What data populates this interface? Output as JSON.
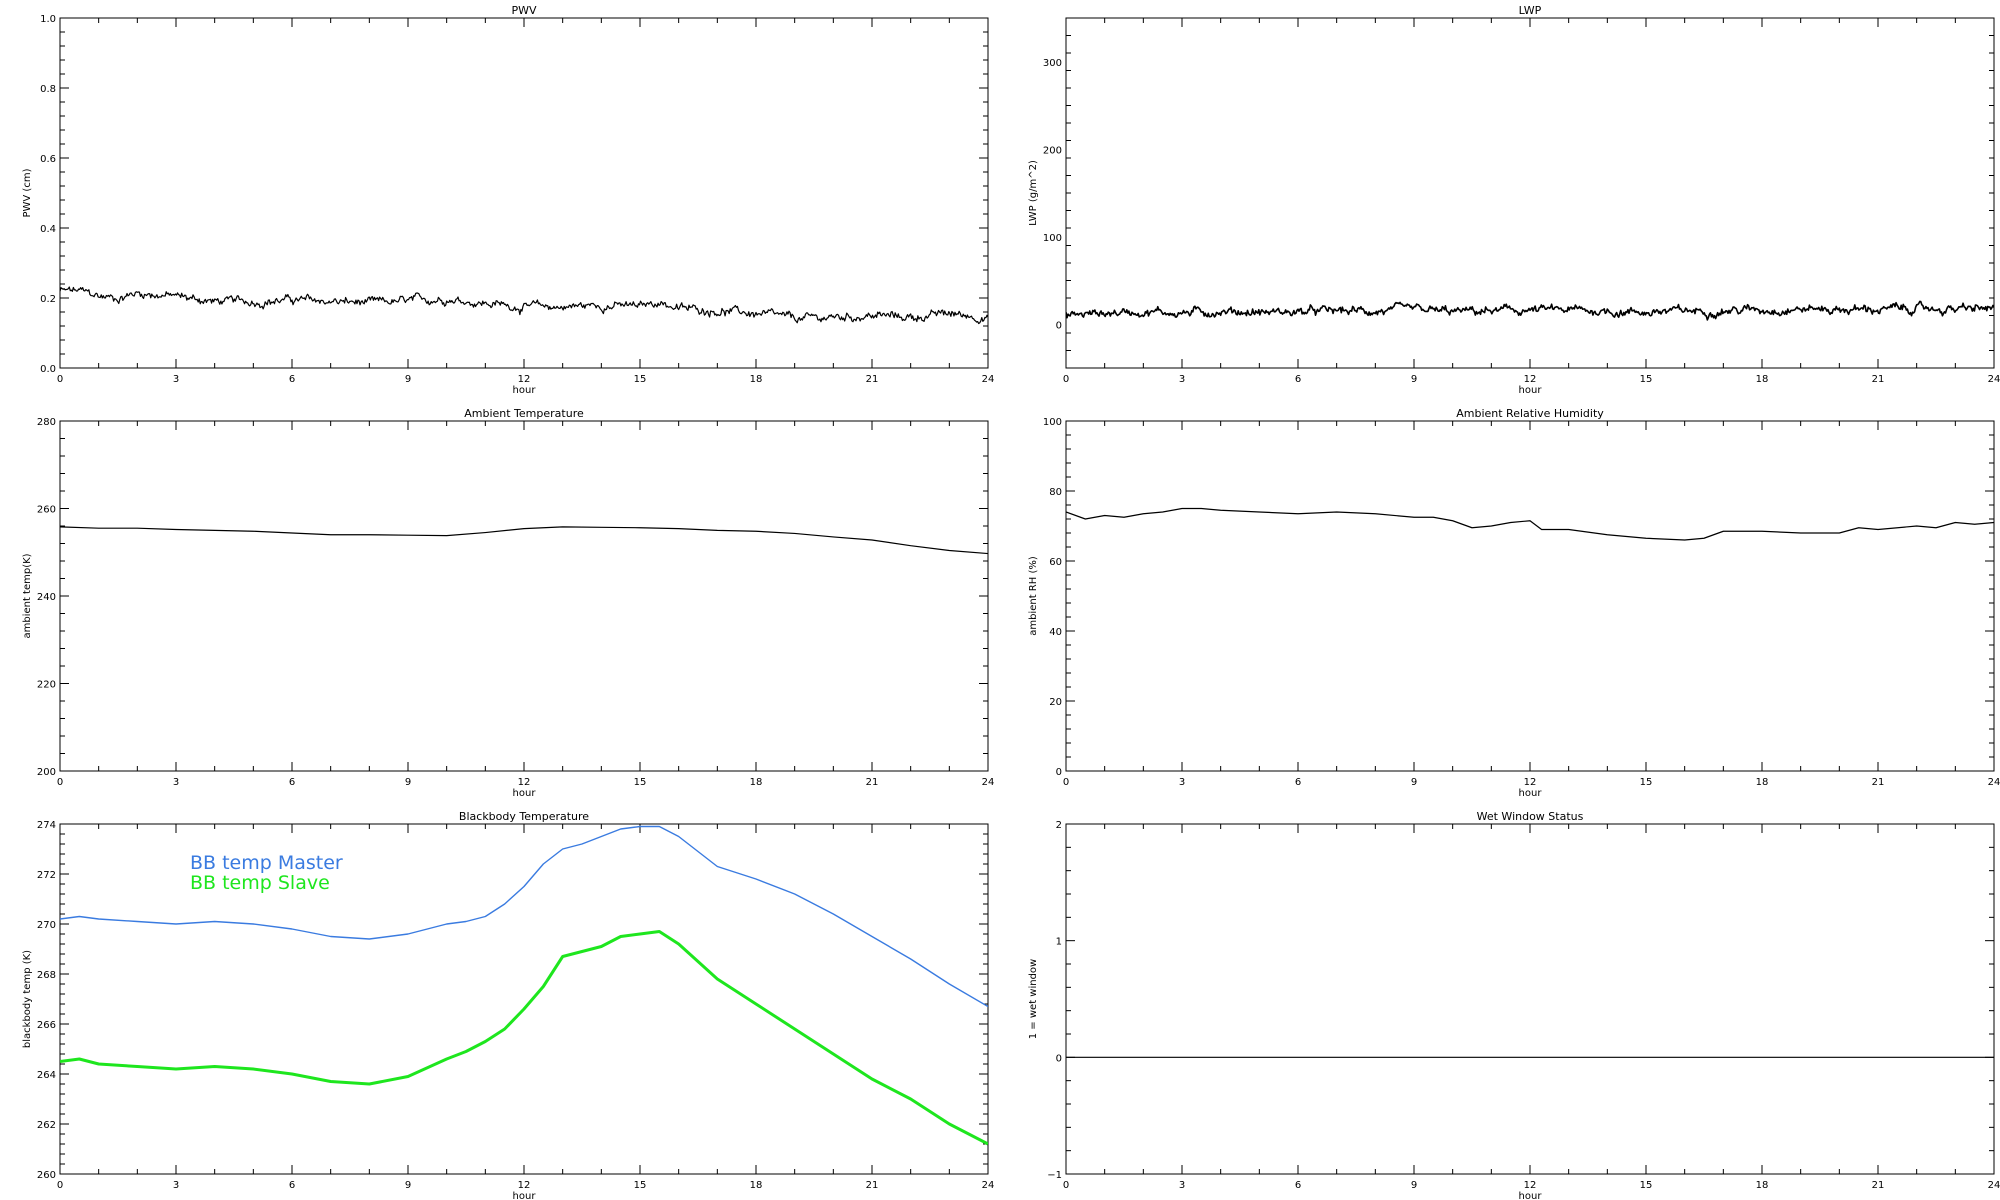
{
  "colors": {
    "background": "#ffffff",
    "axes": "#000000",
    "master": "#3a7be0",
    "slave": "#1ee61e"
  },
  "chart_data": [
    {
      "id": "pwv",
      "type": "line",
      "title": "PWV",
      "xlabel": "hour",
      "ylabel": "PWV (cm)",
      "xlim": [
        0,
        24
      ],
      "ylim": [
        0,
        1
      ],
      "xticks": [
        0,
        3,
        6,
        9,
        12,
        15,
        18,
        21,
        24
      ],
      "yticks": [
        0,
        0.2,
        0.4,
        0.6,
        0.8,
        1
      ],
      "ytick_labels": [
        "0.0",
        "0.2",
        "0.4",
        "0.6",
        "0.8",
        "1.0"
      ],
      "series": [
        {
          "color": "#000000",
          "noisy": true,
          "x": [
            0,
            0.5,
            1,
            1.5,
            2,
            3,
            4,
            5,
            6,
            7,
            8,
            9,
            10,
            11,
            12,
            13,
            14,
            15,
            15.5,
            16,
            17,
            18,
            19,
            20,
            21,
            22,
            23,
            24
          ],
          "y": [
            0.22,
            0.22,
            0.205,
            0.2,
            0.215,
            0.205,
            0.19,
            0.19,
            0.195,
            0.19,
            0.185,
            0.19,
            0.2,
            0.185,
            0.175,
            0.175,
            0.18,
            0.175,
            0.19,
            0.17,
            0.165,
            0.155,
            0.14,
            0.145,
            0.15,
            0.145,
            0.155,
            0.145
          ]
        }
      ]
    },
    {
      "id": "lwp",
      "type": "line",
      "title": "LWP",
      "xlabel": "hour",
      "ylabel": "LWP (g/m^2)",
      "xlim": [
        0,
        24
      ],
      "ylim": [
        -50,
        350
      ],
      "xticks": [
        0,
        3,
        6,
        9,
        12,
        15,
        18,
        21,
        24
      ],
      "yticks": [
        0,
        100,
        200,
        300
      ],
      "ytick_labels": [
        "0",
        "100",
        "200",
        "300"
      ],
      "series": [
        {
          "color": "#000000",
          "noisy": true,
          "x": [
            0,
            1,
            2,
            3,
            4,
            5,
            6,
            7,
            8,
            9,
            10,
            11,
            12,
            13,
            14,
            15,
            16,
            17,
            18,
            19,
            20,
            21,
            22,
            23,
            24
          ],
          "y": [
            10,
            13,
            15,
            13,
            15,
            14,
            14,
            15,
            15,
            16,
            14,
            15,
            16,
            16,
            15,
            14,
            15,
            16,
            17,
            18,
            17,
            17,
            18,
            17,
            18
          ]
        }
      ]
    },
    {
      "id": "ambient-temp",
      "type": "line",
      "title": "Ambient Temperature",
      "xlabel": "hour",
      "ylabel": "ambient temp(K)",
      "xlim": [
        0,
        24
      ],
      "ylim": [
        200,
        280
      ],
      "xticks": [
        0,
        3,
        6,
        9,
        12,
        15,
        18,
        21,
        24
      ],
      "yticks": [
        200,
        220,
        240,
        260,
        280
      ],
      "ytick_labels": [
        "200",
        "220",
        "240",
        "260",
        "280"
      ],
      "series": [
        {
          "color": "#000000",
          "noisy": false,
          "x": [
            0,
            1,
            2,
            3,
            4,
            5,
            6,
            7,
            8,
            9,
            10,
            11,
            12,
            13,
            14,
            15,
            16,
            17,
            18,
            19,
            20,
            21,
            22,
            23,
            24
          ],
          "y": [
            255.8,
            255.5,
            255.5,
            255.2,
            255.0,
            254.8,
            254.4,
            254.0,
            254.0,
            253.9,
            253.8,
            254.5,
            255.4,
            255.8,
            255.7,
            255.6,
            255.4,
            255.0,
            254.8,
            254.3,
            253.5,
            252.8,
            251.5,
            250.4,
            249.7
          ]
        }
      ]
    },
    {
      "id": "ambient-rh",
      "type": "line",
      "title": "Ambient Relative Humidity",
      "xlabel": "hour",
      "ylabel": "ambient RH (%)",
      "xlim": [
        0,
        24
      ],
      "ylim": [
        0,
        100
      ],
      "xticks": [
        0,
        3,
        6,
        9,
        12,
        15,
        18,
        21,
        24
      ],
      "yticks": [
        0,
        20,
        40,
        60,
        80,
        100
      ],
      "ytick_labels": [
        "0",
        "20",
        "40",
        "60",
        "80",
        "100"
      ],
      "series": [
        {
          "color": "#000000",
          "noisy": false,
          "x": [
            0,
            0.5,
            1,
            1.5,
            2,
            2.5,
            3,
            3.5,
            4,
            5,
            6,
            7,
            8,
            9,
            9.5,
            10,
            10.5,
            11,
            11.5,
            12,
            12.3,
            13,
            14,
            15,
            16,
            16.5,
            17,
            18,
            19,
            20,
            20.5,
            21,
            22,
            22.5,
            23,
            23.5,
            24
          ],
          "y": [
            74,
            72,
            73,
            72.5,
            73.5,
            74,
            75,
            75,
            74.5,
            74,
            73.5,
            74,
            73.5,
            72.5,
            72.5,
            71.5,
            69.5,
            70,
            71,
            71.5,
            69,
            69,
            67.5,
            66.5,
            66,
            66.5,
            68.5,
            68.5,
            68,
            68,
            69.5,
            69,
            70,
            69.5,
            71,
            70.5,
            71
          ]
        }
      ]
    },
    {
      "id": "blackbody-temp",
      "type": "line",
      "title": "Blackbody Temperature",
      "xlabel": "hour",
      "ylabel": "blackbody temp (K)",
      "xlim": [
        0,
        24
      ],
      "ylim": [
        260,
        274
      ],
      "xticks": [
        0,
        3,
        6,
        9,
        12,
        15,
        18,
        21,
        24
      ],
      "yticks": [
        260,
        262,
        264,
        266,
        268,
        270,
        272,
        274
      ],
      "ytick_labels": [
        "260",
        "262",
        "264",
        "266",
        "268",
        "270",
        "272",
        "274"
      ],
      "legend": [
        "BB temp Master",
        "BB temp Slave"
      ],
      "series": [
        {
          "name": "BB temp Master",
          "color": "#3a7be0",
          "noisy": false,
          "x": [
            0,
            0.5,
            1,
            2,
            3,
            4,
            5,
            6,
            7,
            8,
            9,
            10,
            10.5,
            11,
            11.5,
            12,
            12.5,
            13,
            13.5,
            14,
            14.5,
            15,
            15.5,
            16,
            17,
            18,
            19,
            20,
            21,
            22,
            23,
            24
          ],
          "y": [
            270.2,
            270.3,
            270.2,
            270.1,
            270.0,
            270.1,
            270.0,
            269.8,
            269.5,
            269.4,
            269.6,
            270.0,
            270.1,
            270.3,
            270.8,
            271.5,
            272.4,
            273.0,
            273.2,
            273.5,
            273.8,
            273.9,
            273.9,
            273.5,
            272.3,
            271.8,
            271.2,
            270.4,
            269.5,
            268.6,
            267.6,
            266.7
          ]
        },
        {
          "name": "BB temp Slave",
          "color": "#1ee61e",
          "noisy": false,
          "x": [
            0,
            0.5,
            1,
            2,
            3,
            4,
            5,
            6,
            7,
            8,
            9,
            10,
            10.5,
            11,
            11.5,
            12,
            12.5,
            13,
            13.5,
            14,
            14.5,
            15,
            15.5,
            16,
            17,
            18,
            19,
            20,
            21,
            22,
            23,
            24
          ],
          "y": [
            264.5,
            264.6,
            264.4,
            264.3,
            264.2,
            264.3,
            264.2,
            264.0,
            263.7,
            263.6,
            263.9,
            264.6,
            264.9,
            265.3,
            265.8,
            266.6,
            267.5,
            268.7,
            268.9,
            269.1,
            269.5,
            269.6,
            269.7,
            269.2,
            267.8,
            266.8,
            265.8,
            264.8,
            263.8,
            263.0,
            262.0,
            261.2
          ]
        }
      ]
    },
    {
      "id": "wet-window",
      "type": "line",
      "title": "Wet Window Status",
      "xlabel": "hour",
      "ylabel": "1 = wet window",
      "xlim": [
        0,
        24
      ],
      "ylim": [
        -1,
        2
      ],
      "xticks": [
        0,
        3,
        6,
        9,
        12,
        15,
        18,
        21,
        24
      ],
      "yticks": [
        -1,
        0,
        1,
        2
      ],
      "ytick_labels": [
        "−1",
        "0",
        "1",
        "2"
      ],
      "series": [
        {
          "color": "#000000",
          "noisy": false,
          "x": [
            0,
            24
          ],
          "y": [
            0,
            0
          ]
        }
      ]
    }
  ]
}
